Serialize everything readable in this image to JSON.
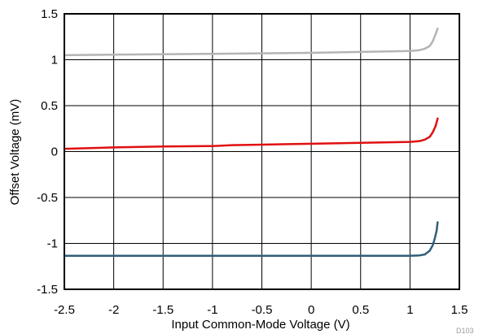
{
  "chart_data": {
    "type": "line",
    "xlabel": "Input Common-Mode Voltage (V)",
    "ylabel": "Offset Voltage (mV)",
    "xlim": [
      -2.5,
      1.5
    ],
    "ylim": [
      -1.5,
      1.5
    ],
    "xticks": [
      -2.5,
      -2,
      -1.5,
      -1,
      -0.5,
      0,
      0.5,
      1,
      1.5
    ],
    "yticks": [
      -1.5,
      -1,
      -0.5,
      0,
      0.5,
      1,
      1.5
    ],
    "xtick_labels": [
      "-2.5",
      "-2",
      "-1.5",
      "-1",
      "-0.5",
      "0",
      "0.5",
      "1",
      "1.5"
    ],
    "ytick_labels": [
      "-1.5",
      "-1",
      "-0.5",
      "0",
      "0.5",
      "1",
      "1.5"
    ],
    "grid": true,
    "legend": "none",
    "figure_id": "D103",
    "series": [
      {
        "color": "#b4b4b4",
        "x": [
          -2.5,
          -2.0,
          -1.5,
          -1.0,
          -0.5,
          0.0,
          0.5,
          1.0,
          1.05,
          1.1,
          1.15,
          1.2,
          1.23,
          1.26,
          1.28
        ],
        "y": [
          1.05,
          1.055,
          1.06,
          1.065,
          1.07,
          1.075,
          1.085,
          1.095,
          1.1,
          1.105,
          1.12,
          1.15,
          1.2,
          1.28,
          1.34
        ]
      },
      {
        "color": "#e01010",
        "x": [
          -2.5,
          -2.0,
          -1.5,
          -1.0,
          -0.8,
          -0.5,
          -0.3,
          0.0,
          0.5,
          1.0,
          1.05,
          1.1,
          1.15,
          1.2,
          1.23,
          1.26,
          1.28
        ],
        "y": [
          0.03,
          0.045,
          0.055,
          0.06,
          0.07,
          0.075,
          0.08,
          0.085,
          0.095,
          0.105,
          0.11,
          0.115,
          0.13,
          0.16,
          0.21,
          0.28,
          0.36
        ]
      },
      {
        "color": "#2f5f78",
        "x": [
          -2.5,
          -2.0,
          -1.5,
          -1.0,
          -0.5,
          0.0,
          0.5,
          1.0,
          1.1,
          1.15,
          1.2,
          1.23,
          1.25,
          1.27,
          1.28
        ],
        "y": [
          -1.135,
          -1.135,
          -1.135,
          -1.135,
          -1.135,
          -1.135,
          -1.135,
          -1.135,
          -1.13,
          -1.12,
          -1.08,
          -1.02,
          -0.95,
          -0.86,
          -0.77
        ]
      }
    ]
  }
}
